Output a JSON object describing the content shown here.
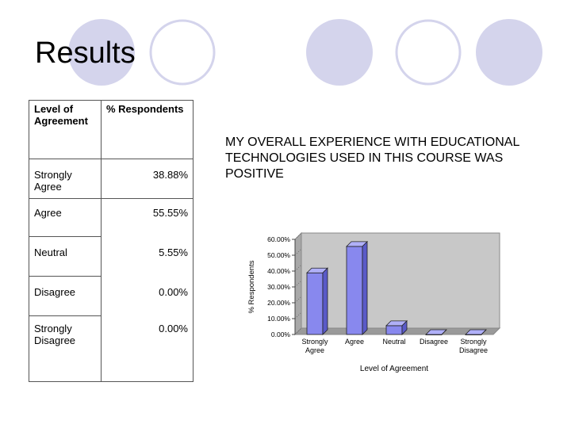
{
  "slide": {
    "title": "Results",
    "question": "MY OVERALL EXPERIENCE WITH EDUCATIONAL TECHNOLOGIES USED IN THIS COURSE WAS POSITIVE"
  },
  "table": {
    "headers": [
      "Level of Agreement",
      "% Respondents"
    ],
    "rows": [
      {
        "level": "Strongly Agree",
        "pct": "38.88%"
      },
      {
        "level": "Agree",
        "pct": "55.55%"
      },
      {
        "level": "Neutral",
        "pct": "5.55%"
      },
      {
        "level": "Disagree",
        "pct": "0.00%"
      },
      {
        "level": "Strongly Disagree",
        "pct": "0.00%"
      }
    ]
  },
  "colors": {
    "circle_fill": "#d4d4ec",
    "circle_outline": "#d4d4ec",
    "bar": "#8888ee",
    "plot_bg": "#c8c8c8"
  },
  "chart_data": {
    "type": "bar",
    "categories": [
      "Strongly Agree",
      "Agree",
      "Neutral",
      "Disagree",
      "Strongly Disagree"
    ],
    "values": [
      38.88,
      55.55,
      5.55,
      0.0,
      0.0
    ],
    "xlabel": "Level of Agreement",
    "ylabel": "% Respondents",
    "ylim": [
      0,
      60
    ],
    "yticks": [
      "0.00%",
      "10.00%",
      "20.00%",
      "30.00%",
      "40.00%",
      "50.00%",
      "60.00%"
    ],
    "grid": false,
    "legend": "none",
    "style": "3d"
  }
}
